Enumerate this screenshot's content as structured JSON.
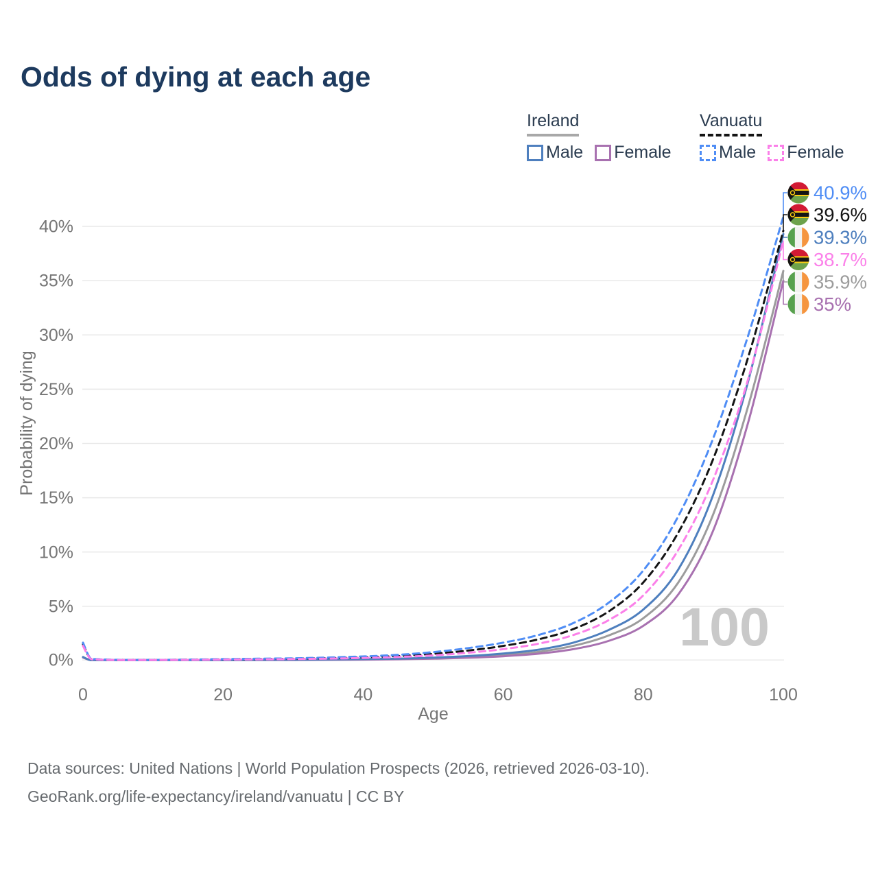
{
  "title": "Odds of dying at each age",
  "legend": {
    "groups": [
      {
        "name": "Ireland",
        "line_style": "solid",
        "underline_color": "#a8a8a8",
        "items": [
          {
            "label": "Male",
            "color": "#4e7fbe"
          },
          {
            "label": "Female",
            "color": "#a871b0"
          }
        ]
      },
      {
        "name": "Vanuatu",
        "line_style": "dashed",
        "underline_color": "#141414",
        "items": [
          {
            "label": "Male",
            "color": "#4f8df5"
          },
          {
            "label": "Female",
            "color": "#fb80e9"
          }
        ]
      }
    ]
  },
  "chart_data": {
    "type": "line",
    "title": "Odds of dying at each age",
    "xlabel": "Age",
    "ylabel": "Probability of dying",
    "xlim": [
      0,
      100
    ],
    "ylim": [
      0,
      43
    ],
    "xticks": [
      0,
      20,
      40,
      60,
      80,
      100
    ],
    "yticks": [
      0,
      5,
      10,
      15,
      20,
      25,
      30,
      35,
      40
    ],
    "ytick_suffix": "%",
    "grid": true,
    "legend_position": "top-right",
    "hovered_age_watermark": "100",
    "series": [
      {
        "name": "Ireland Both sexes",
        "country": "Ireland",
        "sex": "both",
        "color": "#9c9c9c",
        "dash": false,
        "points": [
          [
            0,
            0.3
          ],
          [
            1,
            0.025
          ],
          [
            2,
            0.018
          ],
          [
            5,
            0.012
          ],
          [
            10,
            0.012
          ],
          [
            15,
            0.025
          ],
          [
            20,
            0.04
          ],
          [
            25,
            0.05
          ],
          [
            30,
            0.06
          ],
          [
            35,
            0.08
          ],
          [
            40,
            0.1
          ],
          [
            45,
            0.14
          ],
          [
            50,
            0.21
          ],
          [
            55,
            0.32
          ],
          [
            60,
            0.5
          ],
          [
            65,
            0.8
          ],
          [
            70,
            1.35
          ],
          [
            75,
            2.3
          ],
          [
            80,
            3.9
          ],
          [
            85,
            7.2
          ],
          [
            90,
            13.5
          ],
          [
            95,
            23.5
          ],
          [
            100,
            35.9
          ]
        ]
      },
      {
        "name": "Ireland Female",
        "country": "Ireland",
        "sex": "female",
        "color": "#a871b0",
        "dash": false,
        "points": [
          [
            0,
            0.28
          ],
          [
            1,
            0.022
          ],
          [
            2,
            0.016
          ],
          [
            5,
            0.01
          ],
          [
            10,
            0.01
          ],
          [
            15,
            0.02
          ],
          [
            20,
            0.03
          ],
          [
            25,
            0.04
          ],
          [
            30,
            0.05
          ],
          [
            35,
            0.065
          ],
          [
            40,
            0.085
          ],
          [
            45,
            0.12
          ],
          [
            50,
            0.17
          ],
          [
            55,
            0.26
          ],
          [
            60,
            0.4
          ],
          [
            65,
            0.63
          ],
          [
            70,
            1.05
          ],
          [
            75,
            1.8
          ],
          [
            80,
            3.2
          ],
          [
            85,
            6.1
          ],
          [
            90,
            12.0
          ],
          [
            95,
            22.0
          ],
          [
            100,
            35.0
          ]
        ]
      },
      {
        "name": "Ireland Male",
        "country": "Ireland",
        "sex": "male",
        "color": "#4e7fbe",
        "dash": false,
        "points": [
          [
            0,
            0.33
          ],
          [
            1,
            0.028
          ],
          [
            2,
            0.02
          ],
          [
            5,
            0.013
          ],
          [
            10,
            0.013
          ],
          [
            15,
            0.03
          ],
          [
            20,
            0.05
          ],
          [
            25,
            0.065
          ],
          [
            30,
            0.08
          ],
          [
            35,
            0.1
          ],
          [
            40,
            0.13
          ],
          [
            45,
            0.18
          ],
          [
            50,
            0.27
          ],
          [
            55,
            0.42
          ],
          [
            60,
            0.65
          ],
          [
            65,
            1.0
          ],
          [
            70,
            1.65
          ],
          [
            75,
            2.8
          ],
          [
            80,
            4.7
          ],
          [
            85,
            8.4
          ],
          [
            90,
            15.3
          ],
          [
            95,
            25.8
          ],
          [
            100,
            39.3
          ]
        ]
      },
      {
        "name": "Vanuatu Both sexes",
        "country": "Vanuatu",
        "sex": "both",
        "color": "#141414",
        "dash": true,
        "points": [
          [
            0,
            1.5
          ],
          [
            1,
            0.22
          ],
          [
            2,
            0.11
          ],
          [
            5,
            0.06
          ],
          [
            10,
            0.055
          ],
          [
            15,
            0.08
          ],
          [
            20,
            0.11
          ],
          [
            25,
            0.14
          ],
          [
            30,
            0.17
          ],
          [
            35,
            0.22
          ],
          [
            40,
            0.3
          ],
          [
            45,
            0.42
          ],
          [
            50,
            0.62
          ],
          [
            55,
            0.92
          ],
          [
            60,
            1.35
          ],
          [
            65,
            1.95
          ],
          [
            70,
            2.9
          ],
          [
            75,
            4.5
          ],
          [
            80,
            7.2
          ],
          [
            85,
            11.8
          ],
          [
            90,
            18.6
          ],
          [
            95,
            28.0
          ],
          [
            100,
            39.6
          ]
        ]
      },
      {
        "name": "Vanuatu Male",
        "country": "Vanuatu",
        "sex": "male",
        "color": "#4f8df5",
        "dash": true,
        "points": [
          [
            0,
            1.65
          ],
          [
            1,
            0.25
          ],
          [
            2,
            0.13
          ],
          [
            5,
            0.07
          ],
          [
            10,
            0.06
          ],
          [
            15,
            0.09
          ],
          [
            20,
            0.13
          ],
          [
            25,
            0.17
          ],
          [
            30,
            0.21
          ],
          [
            35,
            0.28
          ],
          [
            40,
            0.38
          ],
          [
            45,
            0.53
          ],
          [
            50,
            0.78
          ],
          [
            55,
            1.15
          ],
          [
            60,
            1.65
          ],
          [
            65,
            2.35
          ],
          [
            70,
            3.45
          ],
          [
            75,
            5.3
          ],
          [
            80,
            8.3
          ],
          [
            85,
            13.3
          ],
          [
            90,
            20.5
          ],
          [
            95,
            30.0
          ],
          [
            100,
            40.9
          ]
        ]
      },
      {
        "name": "Vanuatu Female",
        "country": "Vanuatu",
        "sex": "female",
        "color": "#fb80e9",
        "dash": true,
        "points": [
          [
            0,
            1.35
          ],
          [
            1,
            0.2
          ],
          [
            2,
            0.1
          ],
          [
            5,
            0.05
          ],
          [
            10,
            0.045
          ],
          [
            15,
            0.065
          ],
          [
            20,
            0.09
          ],
          [
            25,
            0.11
          ],
          [
            30,
            0.14
          ],
          [
            35,
            0.18
          ],
          [
            40,
            0.24
          ],
          [
            45,
            0.33
          ],
          [
            50,
            0.48
          ],
          [
            55,
            0.72
          ],
          [
            60,
            1.05
          ],
          [
            65,
            1.55
          ],
          [
            70,
            2.35
          ],
          [
            75,
            3.7
          ],
          [
            80,
            6.0
          ],
          [
            85,
            10.2
          ],
          [
            90,
            16.7
          ],
          [
            95,
            26.0
          ],
          [
            100,
            38.7
          ]
        ]
      }
    ],
    "end_labels": [
      {
        "value": "40.9%",
        "series": "Vanuatu Male",
        "flag": "vanuatu",
        "color": "#4f8df5",
        "end_value": 40.9
      },
      {
        "value": "39.6%",
        "series": "Vanuatu Both sexes",
        "flag": "vanuatu",
        "color": "#141414",
        "end_value": 39.6
      },
      {
        "value": "39.3%",
        "series": "Ireland Male",
        "flag": "ireland",
        "color": "#4e7fbe",
        "end_value": 39.3
      },
      {
        "value": "38.7%",
        "series": "Vanuatu Female",
        "flag": "vanuatu",
        "color": "#fb80e9",
        "end_value": 38.7
      },
      {
        "value": "35.9%",
        "series": "Ireland Both sexes",
        "flag": "ireland",
        "color": "#9c9c9c",
        "end_value": 35.9
      },
      {
        "value": "35%",
        "series": "Ireland Female",
        "flag": "ireland",
        "color": "#a871b0",
        "end_value": 35.0
      }
    ]
  },
  "colors": {
    "title": "#1d3a5e",
    "axis_text": "#757575",
    "gridline": "#e9e9e9",
    "watermark": "#c9c9c9",
    "footer_text": "#666a6e",
    "flag_ireland": [
      "#58a14e",
      "#f2f2f0",
      "#f5953f"
    ],
    "flag_vanuatu": [
      "#d21a34",
      "#6da24b",
      "#141414",
      "#fdce12"
    ]
  },
  "footer": {
    "line1": "Data sources: United Nations | World Population Prospects (2026, retrieved 2026-03-10).",
    "line2": "GeoRank.org/life-expectancy/ireland/vanuatu | CC BY"
  }
}
